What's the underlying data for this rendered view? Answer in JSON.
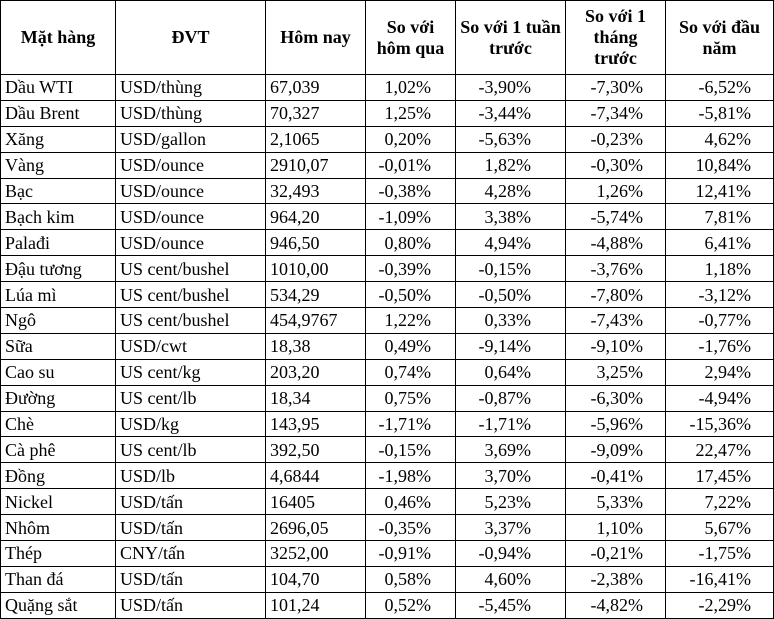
{
  "table": {
    "header": [
      "Mặt hàng",
      "ĐVT",
      "Hôm nay",
      "So với hôm qua",
      "So với 1 tuần trước",
      "So với 1 tháng trước",
      "So với đầu năm"
    ],
    "rows": [
      [
        "Dầu WTI",
        "USD/thùng",
        "67,039",
        "1,02%",
        "-3,90%",
        "-7,30%",
        "-6,52%"
      ],
      [
        "Dầu Brent",
        "USD/thùng",
        "70,327",
        "1,25%",
        "-3,44%",
        "-7,34%",
        "-5,81%"
      ],
      [
        "Xăng",
        "USD/gallon",
        "2,1065",
        "0,20%",
        "-5,63%",
        "-0,23%",
        "4,62%"
      ],
      [
        "Vàng",
        "USD/ounce",
        "2910,07",
        "-0,01%",
        "1,82%",
        "-0,30%",
        "10,84%"
      ],
      [
        "Bạc",
        "USD/ounce",
        "32,493",
        "-0,38%",
        "4,28%",
        "1,26%",
        "12,41%"
      ],
      [
        "Bạch kim",
        "USD/ounce",
        "964,20",
        "-1,09%",
        "3,38%",
        "-5,74%",
        "7,81%"
      ],
      [
        "Palađi",
        "USD/ounce",
        "946,50",
        "0,80%",
        "4,94%",
        "-4,88%",
        "6,41%"
      ],
      [
        "Đậu tương",
        "US cent/bushel",
        "1010,00",
        "-0,39%",
        "-0,15%",
        "-3,76%",
        "1,18%"
      ],
      [
        "Lúa mì",
        "US cent/bushel",
        "534,29",
        "-0,50%",
        "-0,50%",
        "-7,80%",
        "-3,12%"
      ],
      [
        "Ngô",
        "US cent/bushel",
        "454,9767",
        "1,22%",
        "0,33%",
        "-7,43%",
        "-0,77%"
      ],
      [
        "Sữa",
        "USD/cwt",
        "18,38",
        "0,49%",
        "-9,14%",
        "-9,10%",
        "-1,76%"
      ],
      [
        "Cao su",
        "US cent/kg",
        "203,20",
        "0,74%",
        "0,64%",
        "3,25%",
        "2,94%"
      ],
      [
        "Đường",
        "US cent/lb",
        "18,34",
        "0,75%",
        "-0,87%",
        "-6,30%",
        "-4,94%"
      ],
      [
        "Chè",
        "USD/kg",
        "143,95",
        "-1,71%",
        "-1,71%",
        "-5,96%",
        "-15,36%"
      ],
      [
        "Cà phê",
        "US cent/lb",
        "392,50",
        "-0,15%",
        "3,69%",
        "-9,09%",
        "22,47%"
      ],
      [
        "Đồng",
        "USD/lb",
        "4,6844",
        "-1,98%",
        "3,70%",
        "-0,41%",
        "17,45%"
      ],
      [
        "Nickel",
        "USD/tấn",
        "16405",
        "0,46%",
        "5,23%",
        "5,33%",
        "7,22%"
      ],
      [
        "Nhôm",
        "USD/tấn",
        "2696,05",
        "-0,35%",
        "3,37%",
        "1,10%",
        "5,67%"
      ],
      [
        "Thép",
        "CNY/tấn",
        "3252,00",
        "-0,91%",
        "-0,94%",
        "-0,21%",
        "-1,75%"
      ],
      [
        "Than đá",
        "USD/tấn",
        "104,70",
        "0,58%",
        "4,60%",
        "-2,38%",
        "-16,41%"
      ],
      [
        "Quặng sắt",
        "USD/tấn",
        "101,24",
        "0,52%",
        "-5,45%",
        "-4,82%",
        "-2,29%"
      ]
    ]
  }
}
